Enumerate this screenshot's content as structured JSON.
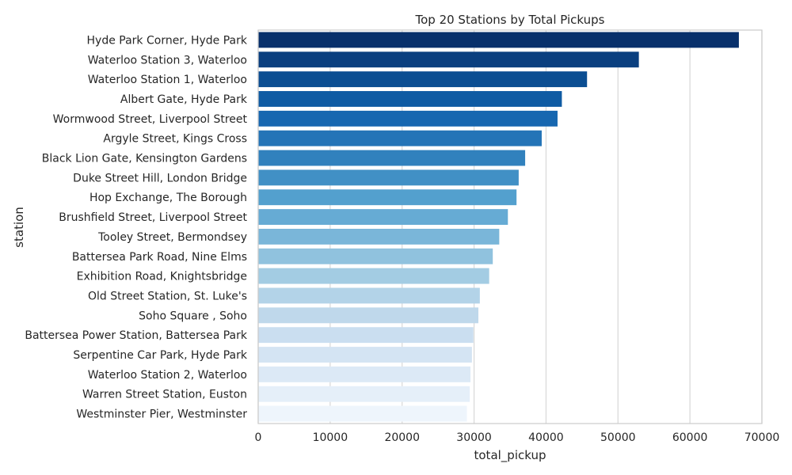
{
  "chart_data": {
    "type": "bar",
    "orientation": "horizontal",
    "title": "Top 20 Stations by Total Pickups",
    "xlabel": "total_pickup",
    "ylabel": "station",
    "xlim": [
      0,
      70000
    ],
    "xticks": [
      0,
      10000,
      20000,
      30000,
      40000,
      50000,
      60000,
      70000
    ],
    "grid": "vertical",
    "palette": "Blues_r",
    "categories": [
      "Hyde Park Corner, Hyde Park",
      "Waterloo Station 3, Waterloo",
      "Waterloo Station 1, Waterloo",
      "Albert Gate, Hyde Park",
      "Wormwood Street, Liverpool Street",
      "Argyle Street, Kings Cross",
      "Black Lion Gate, Kensington Gardens",
      "Duke Street Hill, London Bridge",
      "Hop Exchange, The Borough",
      "Brushfield Street, Liverpool Street",
      "Tooley Street, Bermondsey",
      "Battersea Park Road, Nine Elms",
      "Exhibition Road, Knightsbridge",
      "Old Street Station, St. Luke's",
      "Soho Square , Soho",
      "Battersea Power Station, Battersea Park",
      "Serpentine Car Park, Hyde Park",
      "Waterloo Station 2, Waterloo",
      "Warren Street Station, Euston",
      "Westminster Pier, Westminster"
    ],
    "values": [
      66800,
      52900,
      45700,
      42200,
      41600,
      39400,
      37100,
      36200,
      35900,
      34700,
      33500,
      32600,
      32100,
      30800,
      30600,
      29900,
      29700,
      29500,
      29400,
      29000
    ],
    "colors": [
      "#08306b",
      "#0a3f7f",
      "#0b4e92",
      "#0f5ba3",
      "#1767b0",
      "#2474b7",
      "#3181bd",
      "#4190c5",
      "#53a0ce",
      "#66abd4",
      "#7ab6d9",
      "#90c2de",
      "#a3cce3",
      "#b3d3e8",
      "#bfd8eb",
      "#cadef0",
      "#d4e4f3",
      "#dce9f6",
      "#e5eff9",
      "#eef5fc"
    ]
  }
}
